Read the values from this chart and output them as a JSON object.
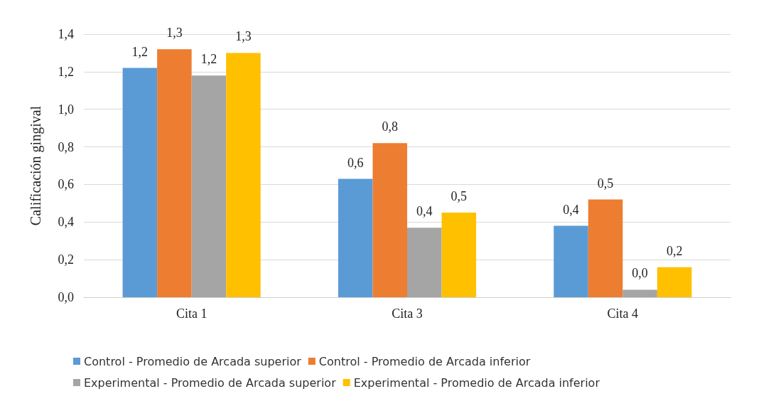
{
  "chart_data": {
    "type": "bar",
    "ylabel": "Calificación gingival",
    "categories": [
      "Cita 1",
      "Cita 3",
      "Cita 4"
    ],
    "series": [
      {
        "name": "Control - Promedio de Arcada superior",
        "color": "#5b9bd5",
        "values": [
          1.22,
          0.63,
          0.38
        ],
        "value_labels": [
          "1,2",
          "0,6",
          "0,4"
        ]
      },
      {
        "name": "Control - Promedio de Arcada inferior",
        "color": "#ed7d31",
        "values": [
          1.32,
          0.82,
          0.52
        ],
        "value_labels": [
          "1,3",
          "0,8",
          "0,5"
        ]
      },
      {
        "name": "Experimental - Promedio de Arcada superior",
        "color": "#a5a5a5",
        "values": [
          1.18,
          0.37,
          0.04
        ],
        "value_labels": [
          "1,2",
          "0,4",
          "0,0"
        ]
      },
      {
        "name": "Experimental - Promedio de Arcada inferior",
        "color": "#ffc000",
        "values": [
          1.3,
          0.45,
          0.16
        ],
        "value_labels": [
          "1,3",
          "0,5",
          "0,2"
        ]
      }
    ],
    "ylim": [
      0,
      1.4
    ],
    "yticks": [
      {
        "value": 0,
        "label": "0,0"
      },
      {
        "value": 0.2,
        "label": "0,2"
      },
      {
        "value": 0.4,
        "label": "0,4"
      },
      {
        "value": 0.6,
        "label": "0,6"
      },
      {
        "value": 0.8,
        "label": "0,8"
      },
      {
        "value": 1.0,
        "label": "1,0"
      },
      {
        "value": 1.2,
        "label": "1,2"
      },
      {
        "value": 1.4,
        "label": "1,4"
      }
    ],
    "grid": "y",
    "legend": "bottom"
  }
}
